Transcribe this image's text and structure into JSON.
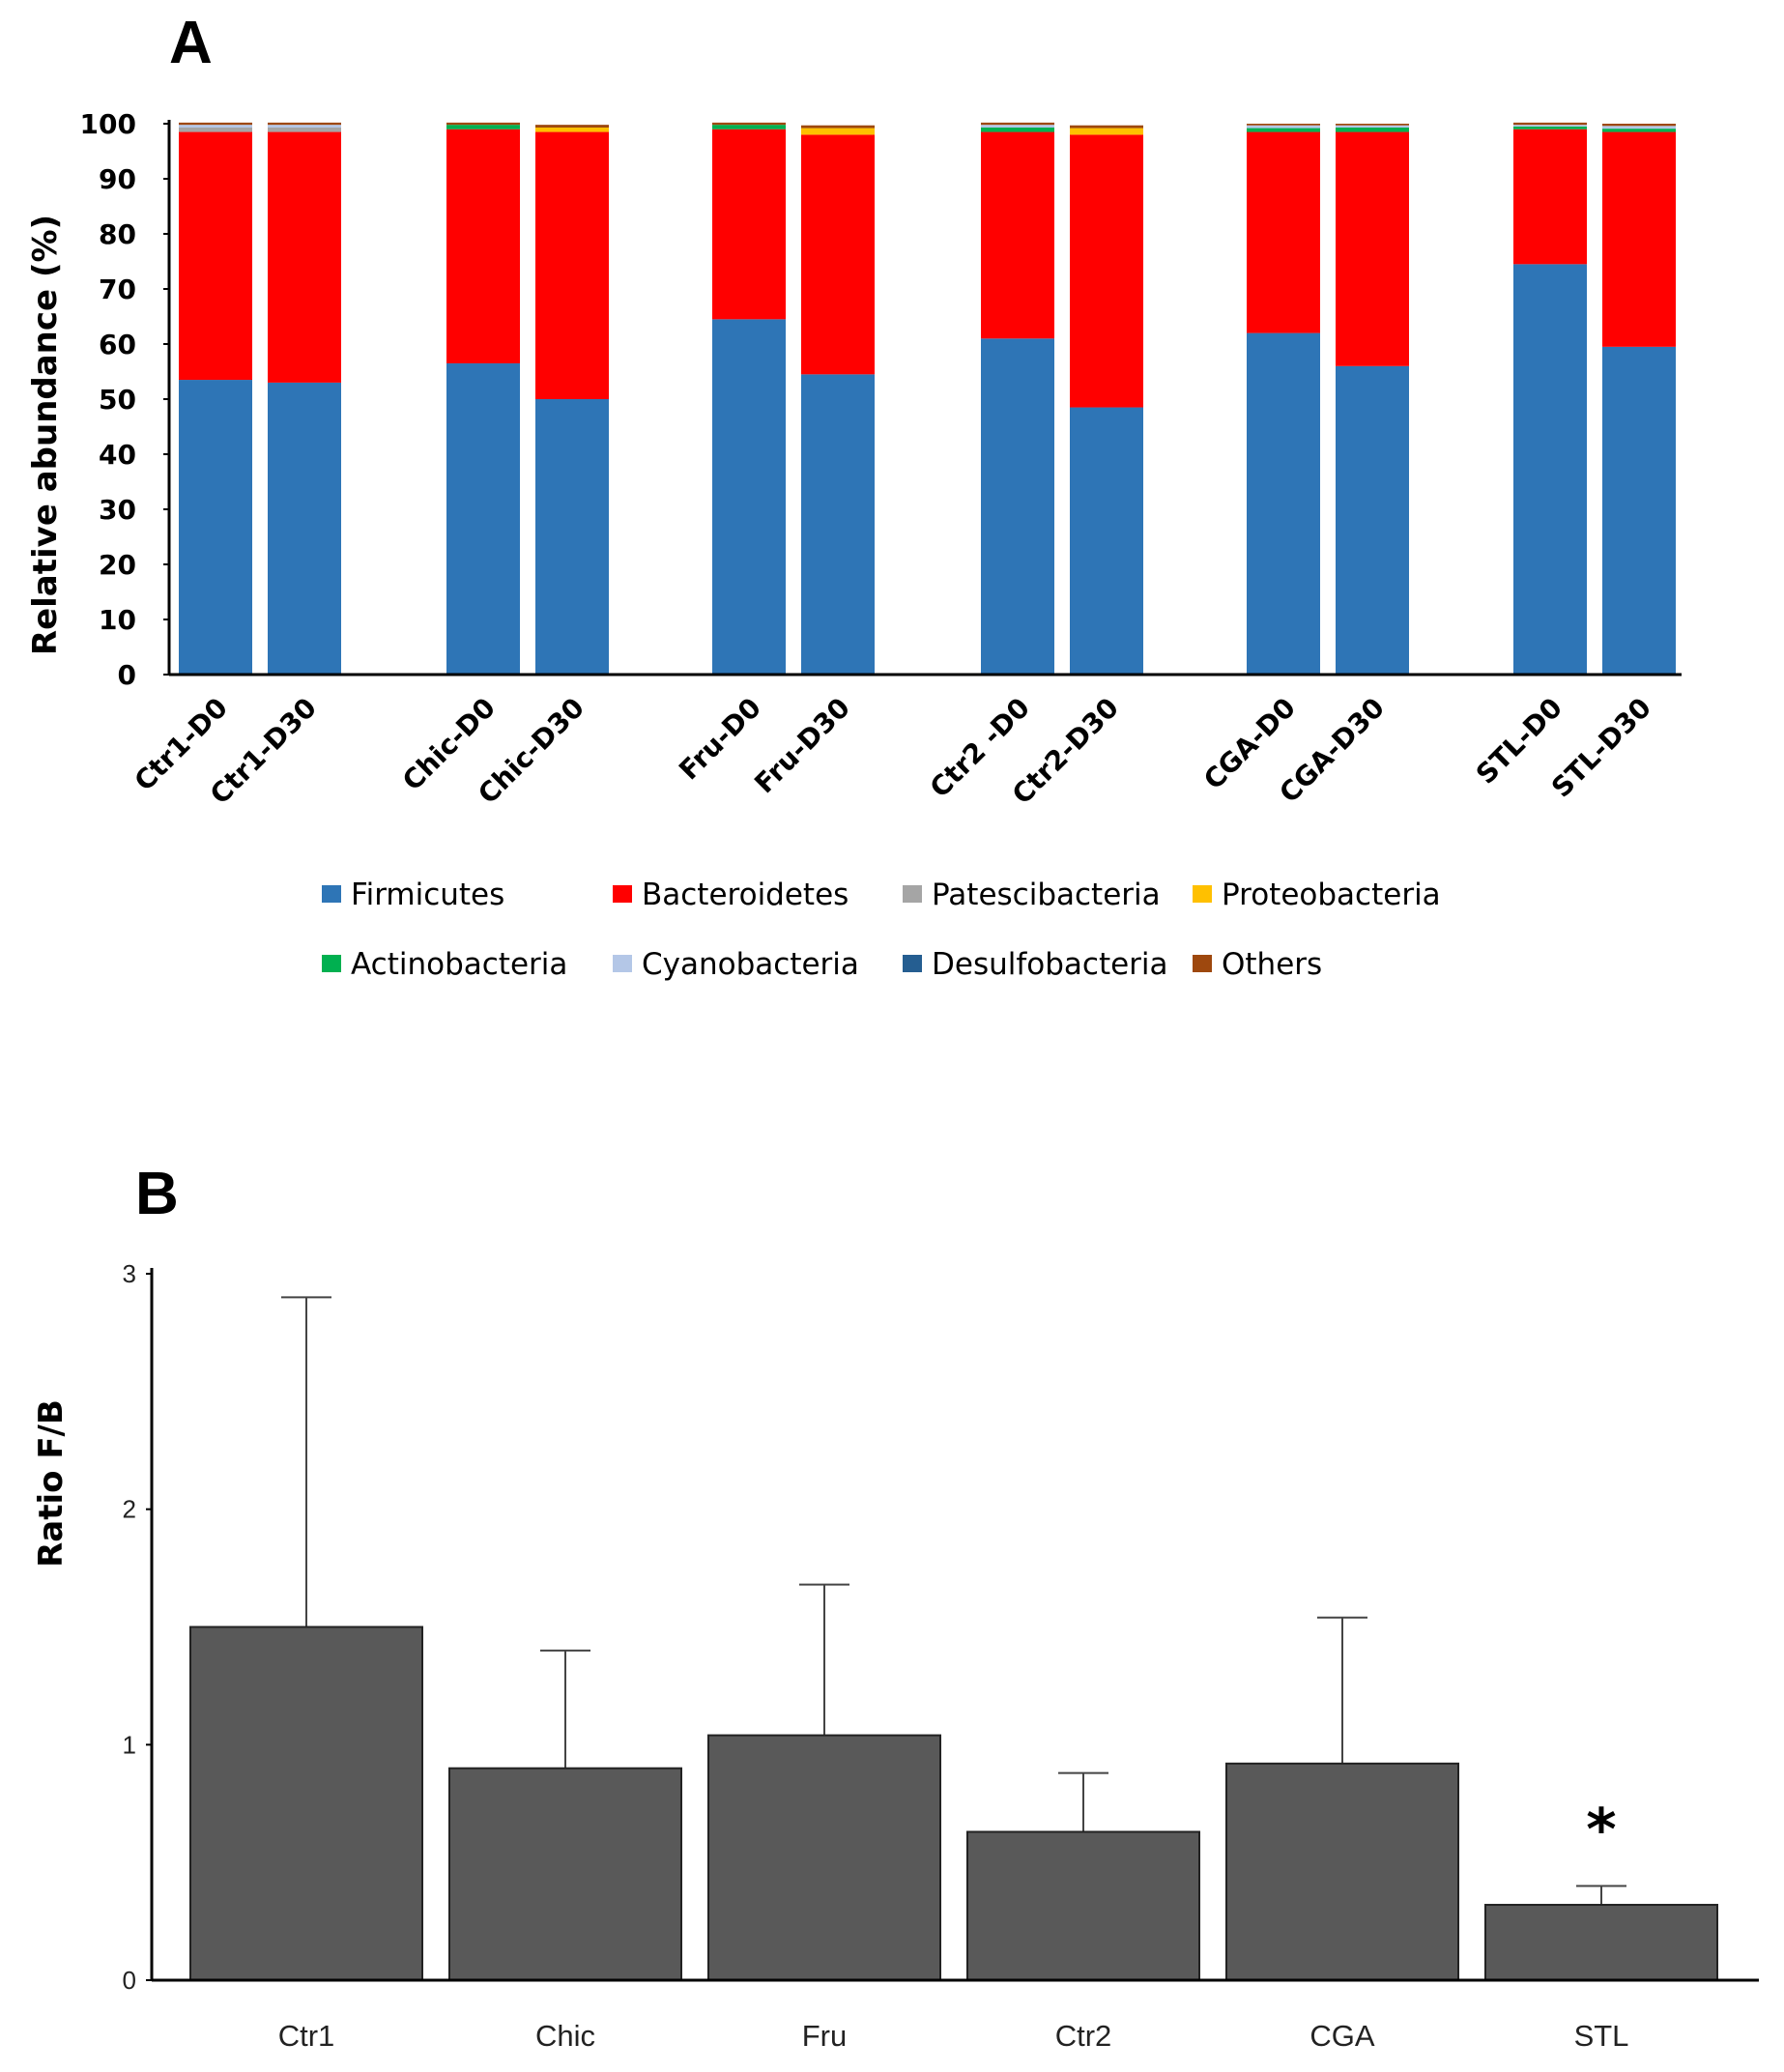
{
  "chart_data": [
    {
      "panel": "A",
      "type": "bar",
      "stacked": true,
      "ylabel": "Relative abundance (%)",
      "ylim": [
        0,
        100
      ],
      "yticks": [
        0,
        10,
        20,
        30,
        40,
        50,
        60,
        70,
        80,
        90,
        100
      ],
      "categories": [
        "Ctr1-D0",
        "Ctr1-D30",
        "Chic-D0",
        "Chic-D30",
        "Fru-D0",
        "Fru-D30",
        "Ctr2 -D0",
        "Ctr2-D30",
        "CGA-D0",
        "CGA-D30",
        "STL-D0",
        "STL-D30"
      ],
      "series": [
        {
          "name": "Firmicutes",
          "color": "#2e75b6",
          "values": [
            53.5,
            53,
            56.5,
            50,
            64.5,
            54.5,
            61,
            48.5,
            62,
            56,
            74.5,
            59.5
          ]
        },
        {
          "name": "Bacteroidetes",
          "color": "#ff0000",
          "values": [
            45,
            45.5,
            42.5,
            48.5,
            34.5,
            43.5,
            37.5,
            49.5,
            36.5,
            42.5,
            24.5,
            39
          ]
        },
        {
          "name": "Patescibacteria",
          "color": "#a5a5a5",
          "values": [
            0.8,
            0.8,
            0,
            0,
            0,
            0,
            0,
            0,
            0,
            0,
            0,
            0
          ]
        },
        {
          "name": "Proteobacteria",
          "color": "#ffc000",
          "values": [
            0,
            0,
            0,
            0.8,
            0,
            1.2,
            0,
            1.2,
            0,
            0,
            0,
            0
          ]
        },
        {
          "name": "Actinobacteria",
          "color": "#00b050",
          "values": [
            0,
            0,
            0.8,
            0,
            0.8,
            0,
            0.8,
            0,
            0.7,
            0.8,
            0.5,
            0.6
          ]
        },
        {
          "name": "Cyanobacteria",
          "color": "#b4c7e7",
          "values": [
            0.5,
            0.5,
            0,
            0,
            0,
            0,
            0.5,
            0,
            0.5,
            0.4,
            0.3,
            0.5
          ]
        },
        {
          "name": "Desulfobacteria",
          "color": "#255e91",
          "values": [
            0,
            0,
            0,
            0,
            0,
            0,
            0,
            0,
            0,
            0,
            0,
            0
          ]
        },
        {
          "name": "Others",
          "color": "#9e480e",
          "values": [
            0.4,
            0.4,
            0.4,
            0.5,
            0.4,
            0.5,
            0.4,
            0.5,
            0.3,
            0.3,
            0.4,
            0.4
          ]
        }
      ]
    },
    {
      "panel": "B",
      "type": "bar",
      "ylabel": "Ratio F/B",
      "ylim": [
        0,
        3
      ],
      "yticks": [
        0,
        1,
        2,
        3
      ],
      "categories": [
        "Ctr1",
        "Chic",
        "Fru",
        "Ctr2",
        "CGA",
        "STL"
      ],
      "values": [
        1.5,
        0.9,
        1.04,
        0.63,
        0.92,
        0.32
      ],
      "error_upper": [
        2.9,
        1.4,
        1.68,
        0.88,
        1.54,
        0.4
      ],
      "bar_color": "#595959",
      "annotations": [
        {
          "category": "STL",
          "text": "*"
        }
      ]
    }
  ]
}
